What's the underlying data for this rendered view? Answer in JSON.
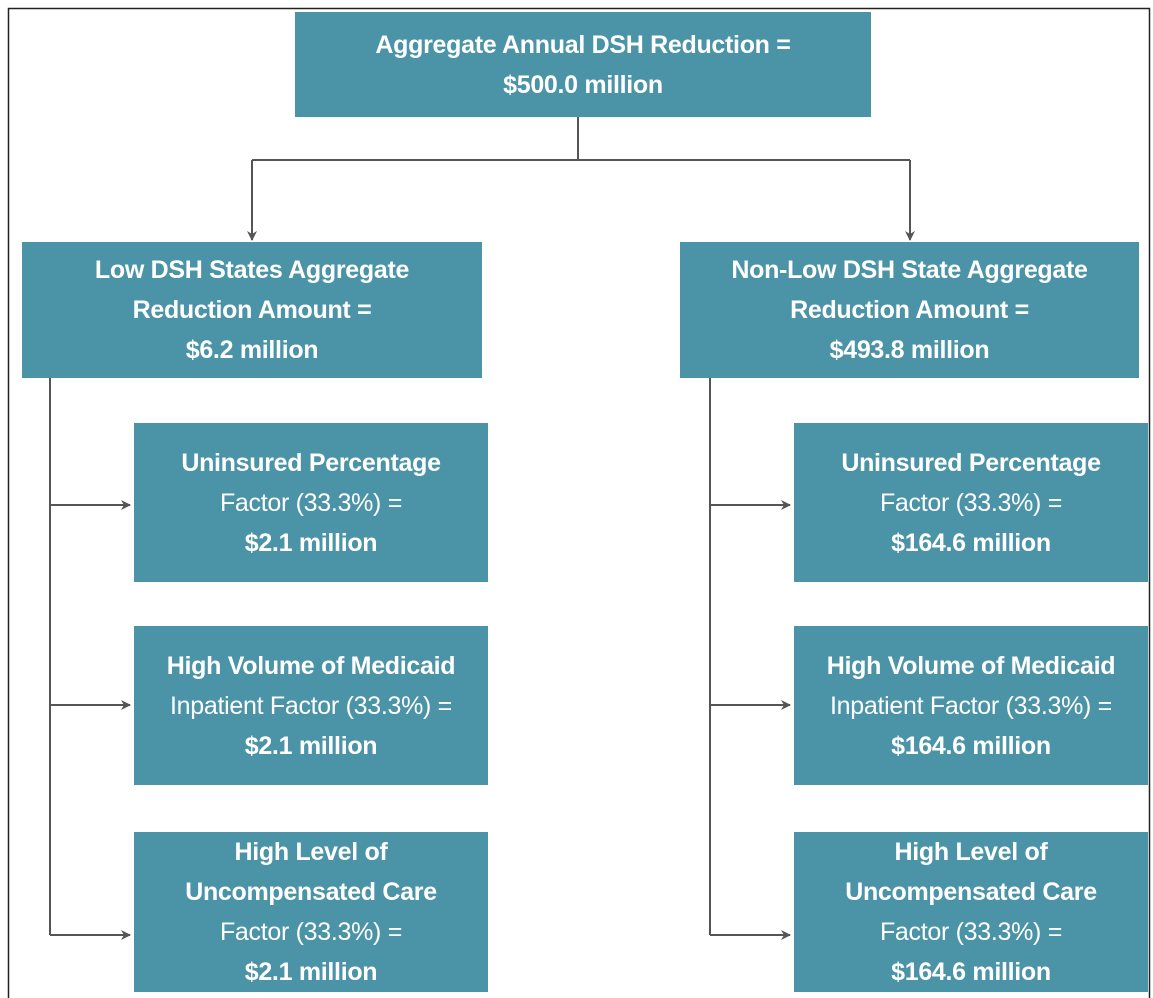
{
  "nodes": [
    {
      "lines": [
        "Aggregate Annual DSH Reduction =",
        "$500.0 million"
      ]
    },
    {
      "lines": [
        "Low DSH States Aggregate",
        "Reduction Amount =",
        "$6.2 million"
      ]
    },
    {
      "lines": [
        "Non-Low DSH State Aggregate",
        "Reduction Amount =",
        "$493.8 million"
      ]
    },
    {
      "lines": [
        "Uninsured Percentage",
        "Factor (33.3%) =",
        "$2.1 million"
      ]
    },
    {
      "lines": [
        "High Volume of Medicaid",
        "Inpatient Factor (33.3%) =",
        "$2.1 million"
      ]
    },
    {
      "lines": [
        "High Level of",
        "Uncompensated Care",
        "Factor (33.3%) =",
        "$2.1 million"
      ]
    },
    {
      "lines": [
        "Uninsured Percentage",
        "Factor (33.3%) =",
        "$164.6 million"
      ]
    },
    {
      "lines": [
        "High Volume of Medicaid",
        "Inpatient Factor (33.3%) =",
        "$164.6 million"
      ]
    },
    {
      "lines": [
        "High Level of",
        "Uncompensated Care",
        "Factor (33.3%) =",
        "$164.6 million"
      ]
    }
  ]
}
